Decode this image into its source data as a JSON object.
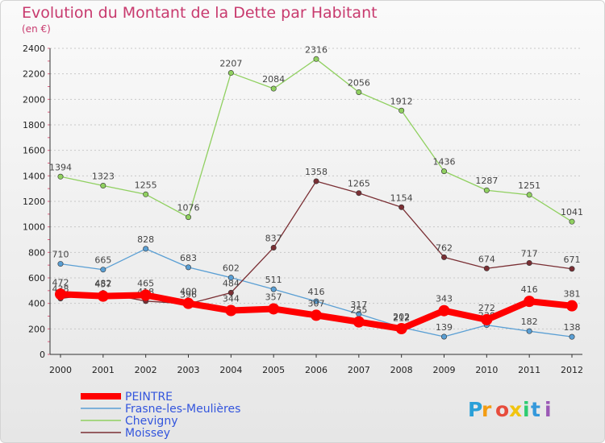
{
  "chart_data": {
    "type": "line",
    "title": "Evolution du Montant de la Dette par Habitant",
    "subtitle": "(en €)",
    "xlabel": "",
    "ylabel": "",
    "x": [
      "2000",
      "2001",
      "2002",
      "2003",
      "2004",
      "2005",
      "2006",
      "2007",
      "2008",
      "2009",
      "2010",
      "2011",
      "2012"
    ],
    "ylim": [
      0,
      2400
    ],
    "yticks": [
      0,
      200,
      400,
      600,
      800,
      1000,
      1200,
      1400,
      1600,
      1800,
      2000,
      2200,
      2400
    ],
    "grid": "horizontal",
    "legend": "bottom-left",
    "series": [
      {
        "name": "PEINTRE",
        "color": "#ff0000",
        "values": [
          472,
          457,
          465,
          400,
          344,
          357,
          307,
          255,
          202,
          343,
          272,
          416,
          381
        ]
      },
      {
        "name": "Frasne-les-Meulières",
        "color": "#5a9fd4",
        "values": [
          710,
          665,
          828,
          683,
          602,
          511,
          416,
          317,
          212,
          139,
          230,
          182,
          138
        ]
      },
      {
        "name": "Chevigny",
        "color": "#90d060",
        "values": [
          1394,
          1323,
          1255,
          1076,
          2207,
          2084,
          2316,
          2056,
          1912,
          1436,
          1287,
          1251,
          1041
        ]
      },
      {
        "name": "Moissey",
        "color": "#7a2f34",
        "values": [
          438,
          482,
          418,
          396,
          484,
          837,
          1358,
          1265,
          1154,
          762,
          674,
          717,
          671
        ]
      }
    ]
  },
  "brand": {
    "logo": "Proxiti"
  }
}
